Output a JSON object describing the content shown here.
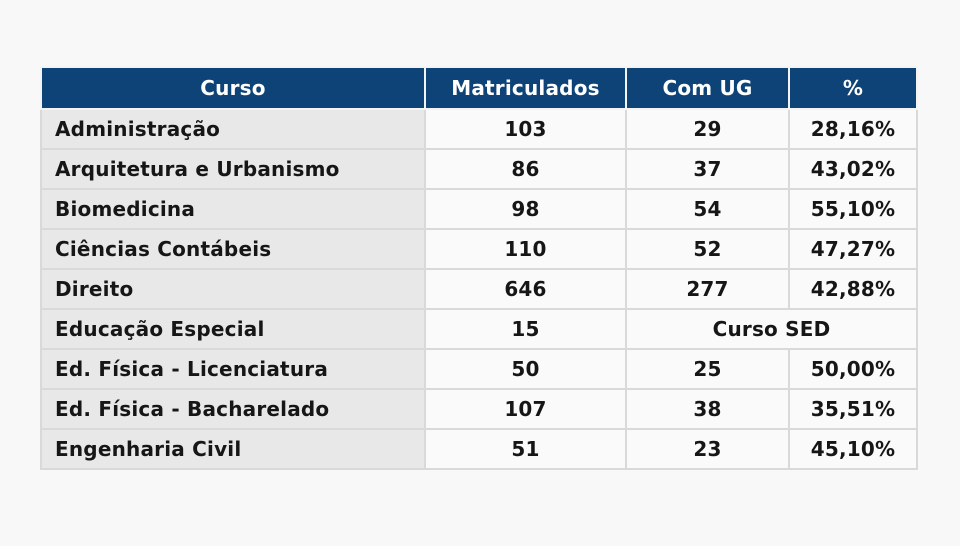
{
  "colors": {
    "page_background": "#f8f8f8",
    "header_background": "#0e4377",
    "header_text": "#ffffff",
    "course_cell_background": "#e8e8e8",
    "value_cell_background": "#fafafa",
    "grid_line": "#d9d9d9",
    "body_text": "#161616"
  },
  "table": {
    "headers": {
      "curso": "Curso",
      "matriculados": "Matriculados",
      "com_ug": "Com UG",
      "pct": "%"
    },
    "rows": [
      {
        "curso": "Administração",
        "matriculados": "103",
        "com_ug": "29",
        "pct": "28,16%"
      },
      {
        "curso": "Arquitetura e Urbanismo",
        "matriculados": "86",
        "com_ug": "37",
        "pct": "43,02%"
      },
      {
        "curso": "Biomedicina",
        "matriculados": "98",
        "com_ug": "54",
        "pct": "55,10%"
      },
      {
        "curso": "Ciências Contábeis",
        "matriculados": "110",
        "com_ug": "52",
        "pct": "47,27%"
      },
      {
        "curso": "Direito",
        "matriculados": "646",
        "com_ug": "277",
        "pct": "42,88%"
      },
      {
        "curso": "Educação Especial",
        "matriculados": "15",
        "merged": "Curso SED"
      },
      {
        "curso": "Ed. Física - Licenciatura",
        "matriculados": "50",
        "com_ug": "25",
        "pct": "50,00%"
      },
      {
        "curso": "Ed. Física - Bacharelado",
        "matriculados": "107",
        "com_ug": "38",
        "pct": "35,51%"
      },
      {
        "curso": "Engenharia Civil",
        "matriculados": "51",
        "com_ug": "23",
        "pct": "45,10%"
      }
    ]
  },
  "chart_data": {
    "type": "table",
    "columns": [
      "Curso",
      "Matriculados",
      "Com UG",
      "%"
    ],
    "rows": [
      [
        "Administração",
        103,
        29,
        "28,16%"
      ],
      [
        "Arquitetura e Urbanismo",
        86,
        37,
        "43,02%"
      ],
      [
        "Biomedicina",
        98,
        54,
        "55,10%"
      ],
      [
        "Ciências Contábeis",
        110,
        52,
        "47,27%"
      ],
      [
        "Direito",
        646,
        277,
        "42,88%"
      ],
      [
        "Educação Especial",
        15,
        "Curso SED",
        "Curso SED"
      ],
      [
        "Ed. Física - Licenciatura",
        50,
        25,
        "50,00%"
      ],
      [
        "Ed. Física - Bacharelado",
        107,
        38,
        "35,51%"
      ],
      [
        "Engenharia Civil",
        51,
        23,
        "45,10%"
      ]
    ],
    "notes": "In the row 'Educação Especial' the 'Com UG' and '%' cells are merged into a single cell reading 'Curso SED'."
  }
}
